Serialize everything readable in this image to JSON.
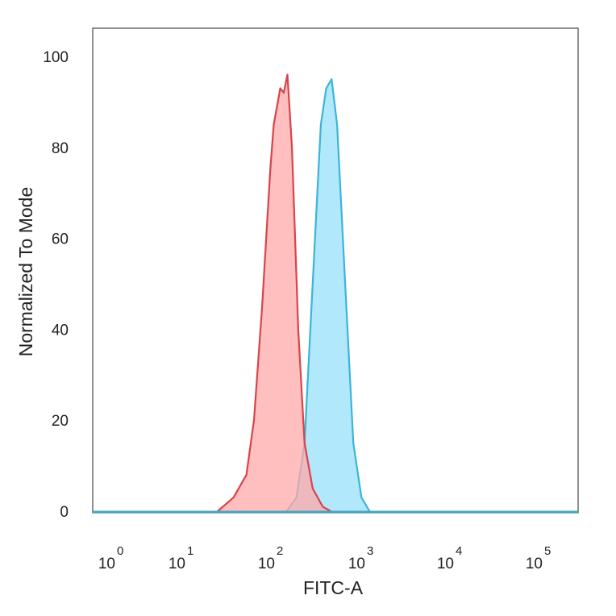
{
  "chart_data": {
    "type": "area",
    "title": "",
    "xlabel": "FITC-A",
    "ylabel": "Normalized To Mode",
    "x_scale": "biexponential (log)",
    "ylim": [
      0,
      100
    ],
    "y_ticks": [
      0,
      20,
      40,
      60,
      80,
      100
    ],
    "x_ticks": [
      {
        "base": "10",
        "exp": "0",
        "value": 1
      },
      {
        "base": "10",
        "exp": "1",
        "value": 10
      },
      {
        "base": "10",
        "exp": "2",
        "value": 100
      },
      {
        "base": "10",
        "exp": "3",
        "value": 1000
      },
      {
        "base": "10",
        "exp": "4",
        "value": 10000
      },
      {
        "base": "10",
        "exp": "5",
        "value": 100000
      }
    ],
    "grid": false,
    "legend": "none",
    "series": [
      {
        "color": "#d9434a",
        "fill": "#ffaaaa",
        "x": [
          22,
          33,
          46,
          56,
          69,
          85,
          93,
          110,
          120,
          132,
          148,
          174,
          204,
          251,
          324,
          398
        ],
        "y": [
          0,
          3,
          8,
          20,
          45,
          75,
          85,
          93,
          92,
          96,
          80,
          40,
          15,
          5,
          1,
          0
        ]
      },
      {
        "color": "#3bb4d8",
        "fill": "#a8e6fb",
        "x": [
          129,
          166,
          204,
          251,
          309,
          355,
          407,
          468,
          575,
          708,
          871,
          1072
        ],
        "y": [
          0,
          3,
          15,
          50,
          85,
          93,
          95,
          85,
          50,
          15,
          3,
          0
        ]
      }
    ]
  }
}
